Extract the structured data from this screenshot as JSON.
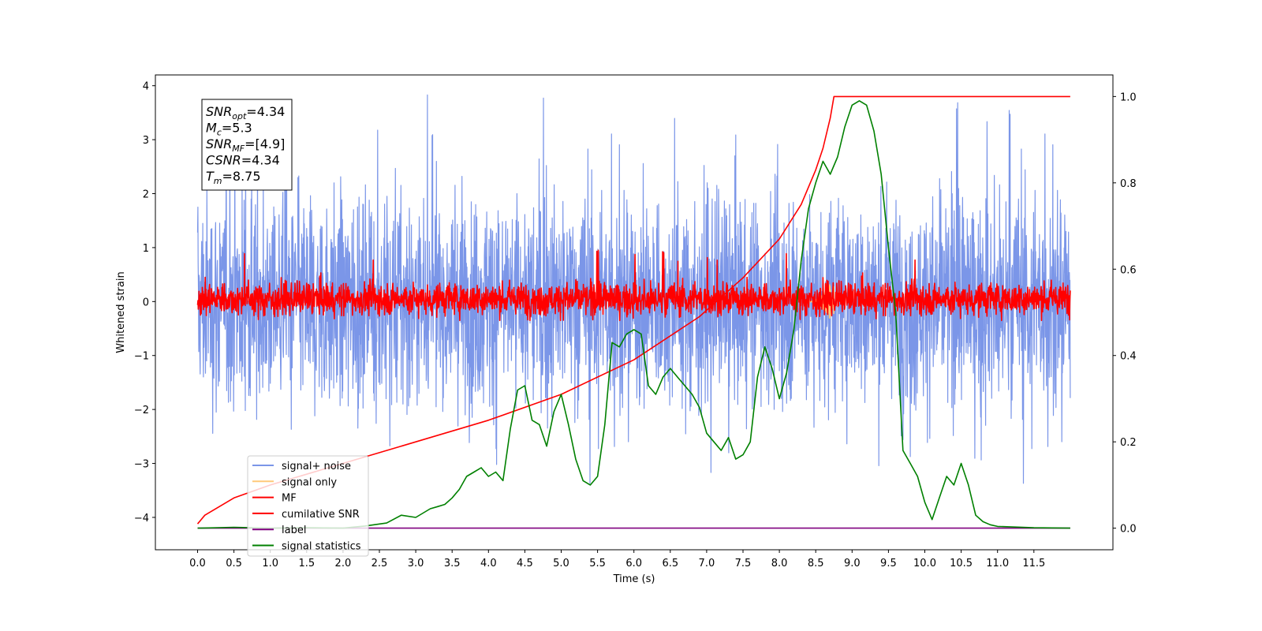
{
  "chart_data": {
    "type": "line",
    "xlabel": "Time (s)",
    "ylabel": "Whitened strain",
    "xlim": [
      -0.6,
      12.4
    ],
    "ylim": [
      -4.6,
      4.2
    ],
    "y2lim": [
      -0.05,
      1.05
    ],
    "x_ticks": [
      "0.0",
      "0.5",
      "1.0",
      "1.5",
      "2.0",
      "2.5",
      "3.0",
      "3.5",
      "4.0",
      "4.5",
      "5.0",
      "5.5",
      "6.0",
      "6.5",
      "7.0",
      "7.5",
      "8.0",
      "8.5",
      "9.0",
      "9.5",
      "10.0",
      "10.5",
      "11.0",
      "11.5"
    ],
    "y_ticks": [
      "4",
      "3",
      "2",
      "1",
      "0",
      "−1",
      "−2",
      "−3",
      "−4"
    ],
    "y2_ticks": [
      "1.0",
      "0.8",
      "0.6",
      "0.4",
      "0.2",
      "0.0"
    ],
    "info_box": [
      {
        "sym": "SNR",
        "sub": "opt",
        "val": "=4.34"
      },
      {
        "sym": "M",
        "sub": "c",
        "val": "=5.3"
      },
      {
        "sym": "SNR",
        "sub": "MF",
        "val": "=[4.9]"
      },
      {
        "sym": "CSNR",
        "sub": "",
        "val": "=4.34"
      },
      {
        "sym": "T",
        "sub": "m",
        "val": "=8.75"
      }
    ],
    "legend": {
      "placement": "lower-left",
      "entries": [
        {
          "label": "signal+ noise",
          "color": "#7b96e8"
        },
        {
          "label": "signal only",
          "color": "#ffc97a"
        },
        {
          "label": "MF",
          "color": "#ff0000"
        },
        {
          "label": "cumilative SNR",
          "color": "#ff0000"
        },
        {
          "label": "label",
          "color": "#800080"
        },
        {
          "label": "signal statistics",
          "color": "#008000"
        }
      ]
    },
    "series": [
      {
        "name": "signal+ noise",
        "color": "#7b96e8",
        "axis": "left",
        "kind": "noise",
        "x_range": [
          0.0,
          12.0
        ],
        "mean": 0.0,
        "typical_amplitude": 1.6,
        "max": 3.85,
        "min": -3.55
      },
      {
        "name": "signal only",
        "color": "#ffc97a",
        "axis": "left",
        "kind": "chirp",
        "x_range": [
          8.4,
          8.75
        ],
        "peak": 0.45
      },
      {
        "name": "MF",
        "color": "#ff0000",
        "axis": "left",
        "kind": "noise",
        "x_range": [
          0.0,
          12.0
        ],
        "mean": 0.05,
        "typical_amplitude": 0.25,
        "max": 0.95,
        "min": -0.35
      },
      {
        "name": "cumilative SNR",
        "color": "#ff0000",
        "axis": "right",
        "x": [
          0.0,
          0.1,
          0.5,
          1.0,
          2.0,
          3.0,
          4.0,
          5.0,
          6.0,
          6.9,
          7.5,
          8.0,
          8.3,
          8.5,
          8.6,
          8.7,
          8.75,
          12.0
        ],
        "values": [
          0.01,
          0.03,
          0.07,
          0.1,
          0.15,
          0.2,
          0.25,
          0.31,
          0.39,
          0.49,
          0.58,
          0.67,
          0.75,
          0.83,
          0.88,
          0.95,
          1.0,
          1.0
        ]
      },
      {
        "name": "label",
        "color": "#800080",
        "axis": "right",
        "x": [
          0.0,
          12.0
        ],
        "values": [
          0.0,
          0.0
        ]
      },
      {
        "name": "signal statistics",
        "color": "#008000",
        "axis": "right",
        "x": [
          0.0,
          0.5,
          1.0,
          1.5,
          2.0,
          2.3,
          2.6,
          2.8,
          3.0,
          3.2,
          3.3,
          3.4,
          3.5,
          3.6,
          3.7,
          3.8,
          3.9,
          4.0,
          4.1,
          4.2,
          4.3,
          4.4,
          4.5,
          4.6,
          4.7,
          4.8,
          4.9,
          5.0,
          5.1,
          5.2,
          5.3,
          5.4,
          5.5,
          5.6,
          5.7,
          5.8,
          5.9,
          6.0,
          6.1,
          6.2,
          6.3,
          6.4,
          6.5,
          6.6,
          6.7,
          6.8,
          6.9,
          7.0,
          7.1,
          7.2,
          7.3,
          7.4,
          7.5,
          7.6,
          7.7,
          7.8,
          7.9,
          8.0,
          8.1,
          8.2,
          8.3,
          8.4,
          8.5,
          8.6,
          8.7,
          8.8,
          8.9,
          9.0,
          9.1,
          9.2,
          9.3,
          9.4,
          9.5,
          9.6,
          9.7,
          9.8,
          9.9,
          10.0,
          10.1,
          10.2,
          10.3,
          10.4,
          10.5,
          10.6,
          10.7,
          10.8,
          10.9,
          11.0,
          11.5,
          12.0
        ],
        "values": [
          0.0,
          0.002,
          0.0,
          0.001,
          0.0,
          0.005,
          0.012,
          0.03,
          0.025,
          0.045,
          0.05,
          0.055,
          0.07,
          0.09,
          0.12,
          0.13,
          0.14,
          0.12,
          0.13,
          0.11,
          0.23,
          0.32,
          0.33,
          0.25,
          0.24,
          0.19,
          0.27,
          0.31,
          0.24,
          0.16,
          0.11,
          0.1,
          0.12,
          0.24,
          0.43,
          0.42,
          0.45,
          0.46,
          0.45,
          0.33,
          0.31,
          0.35,
          0.37,
          0.35,
          0.33,
          0.31,
          0.28,
          0.22,
          0.2,
          0.18,
          0.21,
          0.16,
          0.17,
          0.2,
          0.35,
          0.42,
          0.37,
          0.3,
          0.36,
          0.46,
          0.62,
          0.74,
          0.8,
          0.85,
          0.82,
          0.86,
          0.93,
          0.98,
          0.99,
          0.98,
          0.92,
          0.82,
          0.65,
          0.5,
          0.18,
          0.15,
          0.12,
          0.06,
          0.02,
          0.07,
          0.12,
          0.1,
          0.15,
          0.1,
          0.03,
          0.015,
          0.008,
          0.004,
          0.001,
          0.0
        ]
      }
    ]
  }
}
